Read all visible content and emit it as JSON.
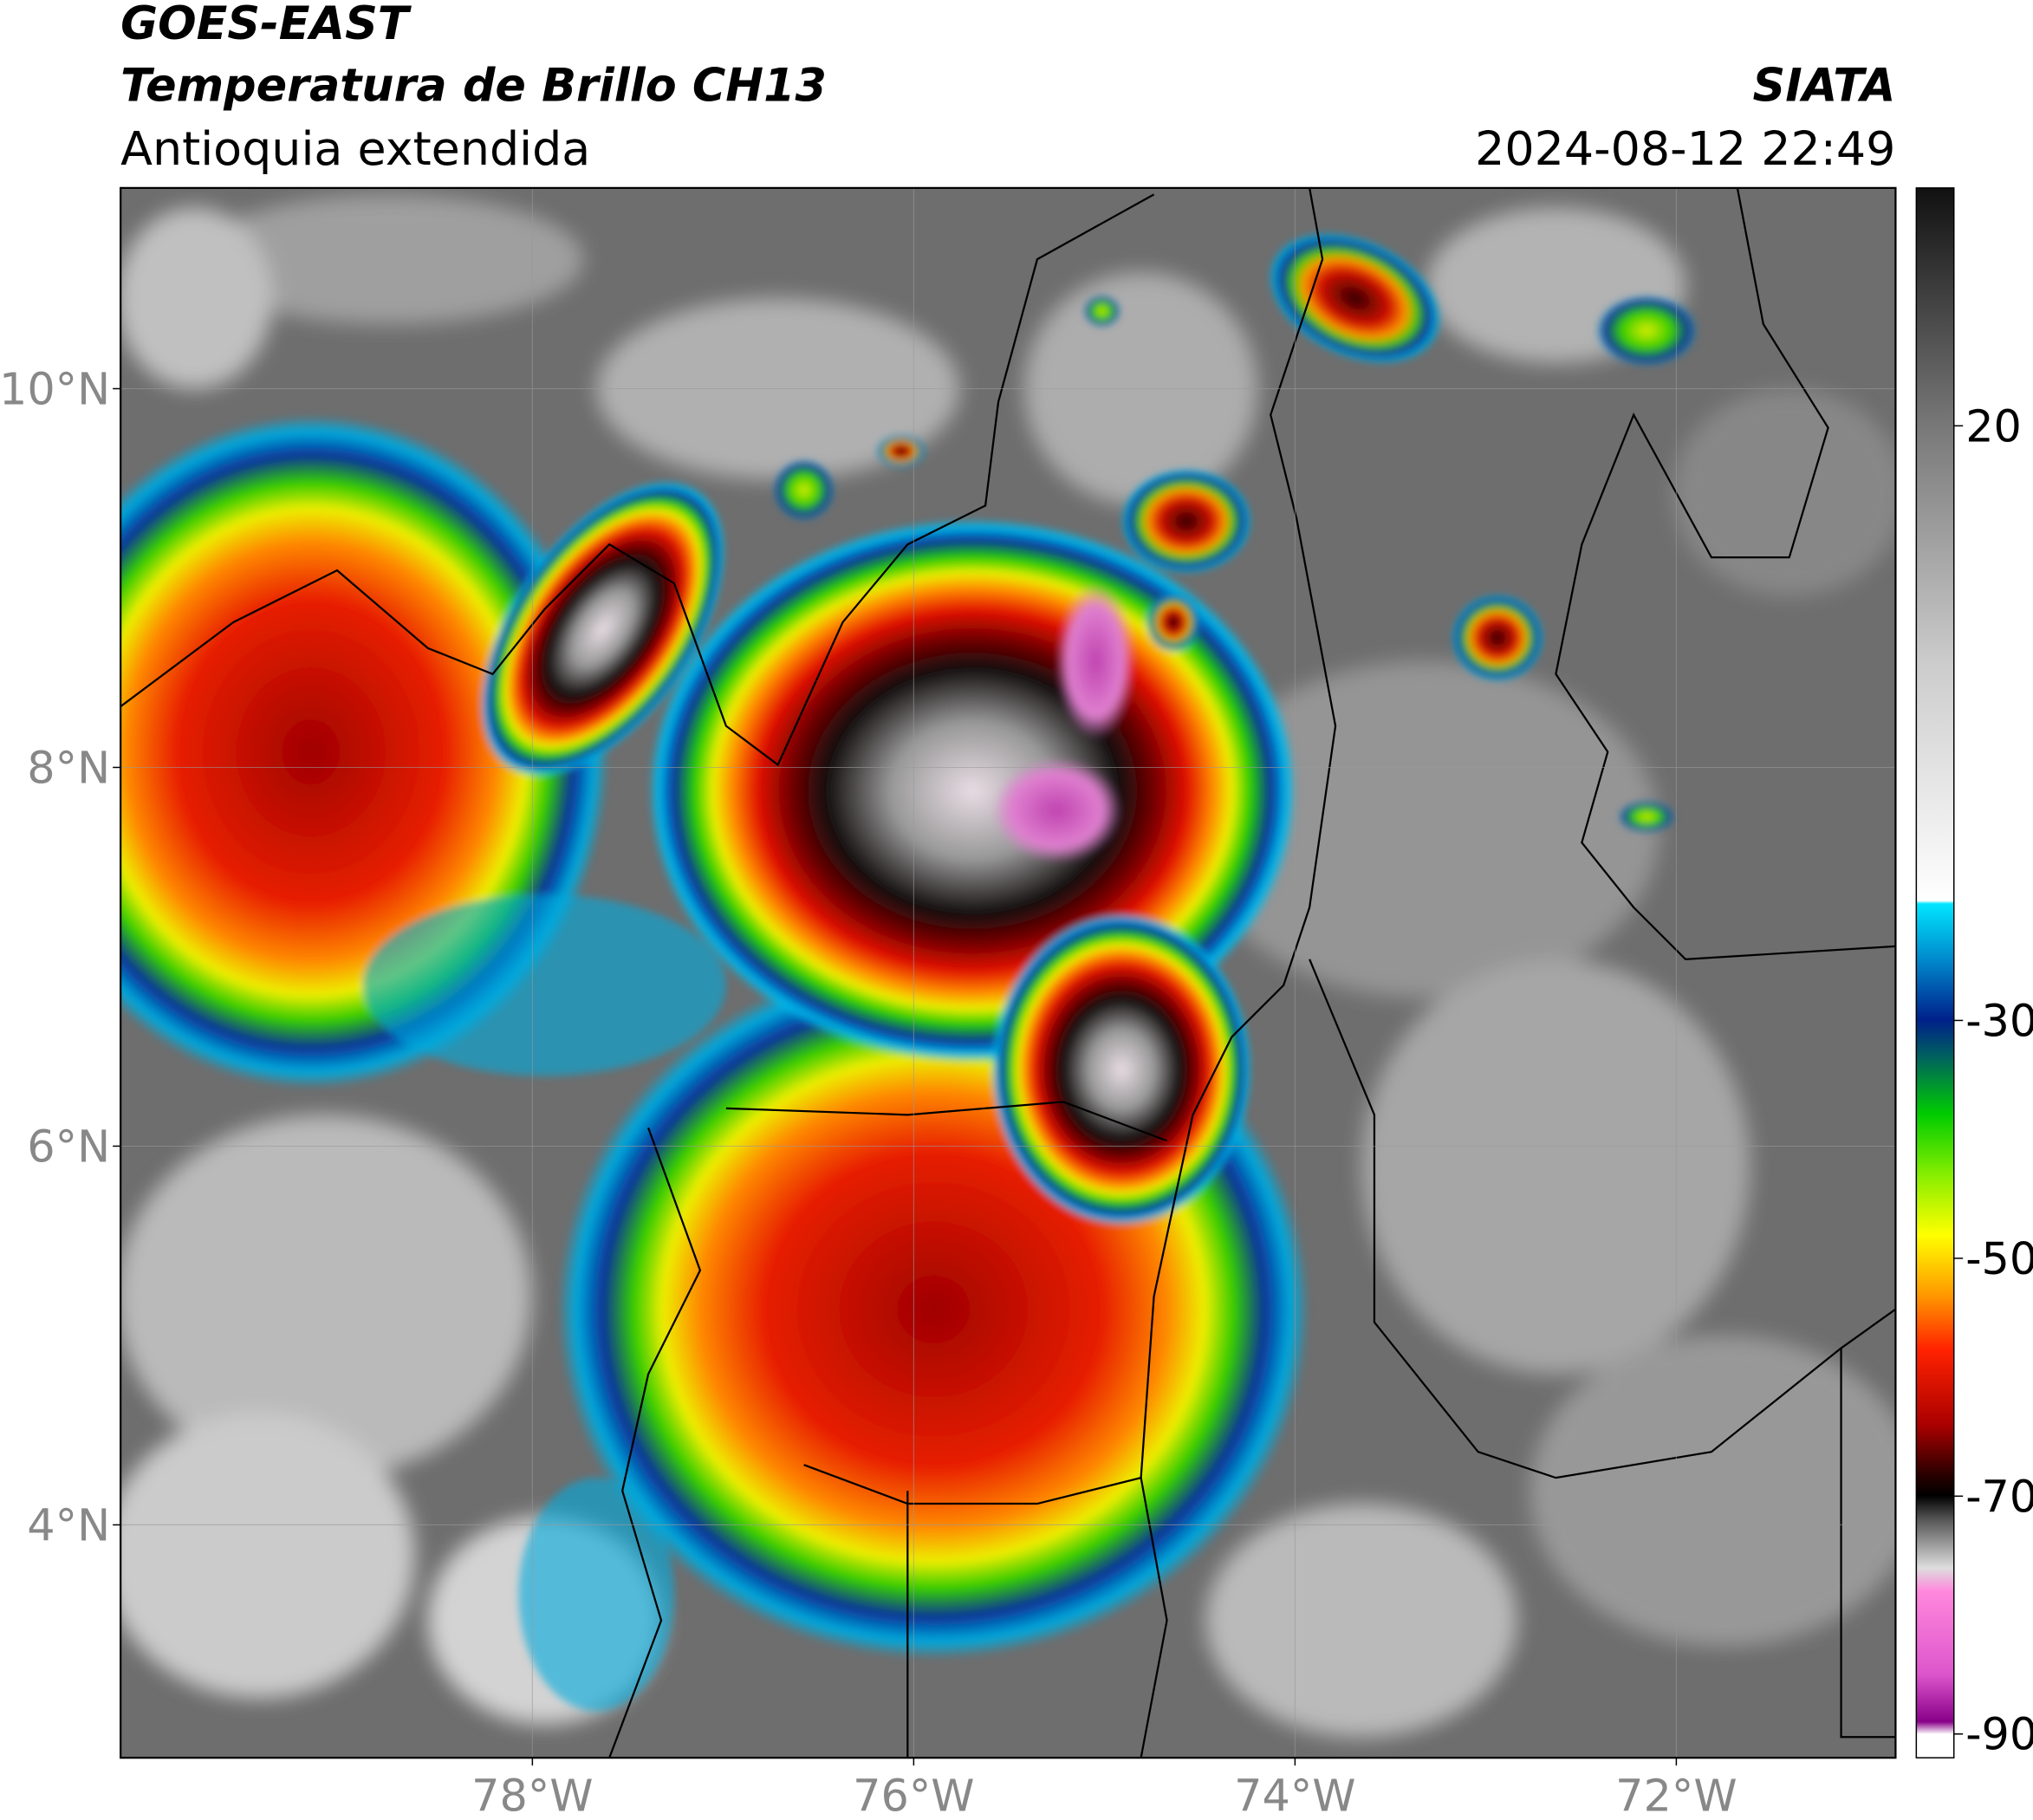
{
  "header": {
    "satellite": "GOES-EAST",
    "product": "Temperatura de Brillo CH13",
    "region": "Antioquia extendida",
    "source": "SIATA",
    "datetime": "2024-08-12 22:49"
  },
  "map": {
    "xlim": [
      -80.16,
      -70.85
    ],
    "ylim": [
      2.77,
      11.06
    ],
    "xticks": [
      {
        "value": -78,
        "label": "78°W"
      },
      {
        "value": -76,
        "label": "76°W"
      },
      {
        "value": -74,
        "label": "74°W"
      },
      {
        "value": -72,
        "label": "72°W"
      }
    ],
    "yticks": [
      {
        "value": 4,
        "label": "4°N"
      },
      {
        "value": 6,
        "label": "6°N"
      },
      {
        "value": 8,
        "label": "8°N"
      },
      {
        "value": 10,
        "label": "10°N"
      }
    ]
  },
  "colorbar": {
    "lim": [
      -92,
      40
    ],
    "ticks": [
      -90,
      -70,
      -50,
      -30,
      20
    ]
  }
}
